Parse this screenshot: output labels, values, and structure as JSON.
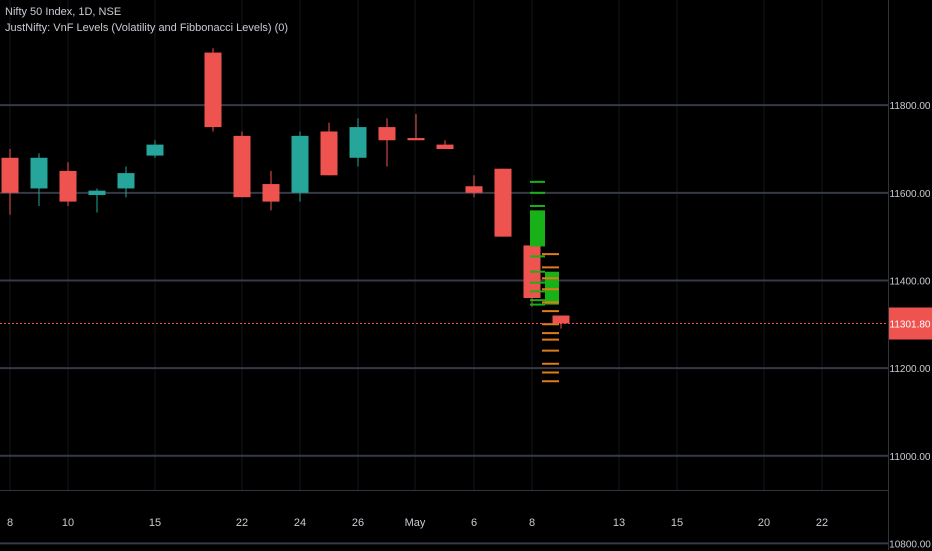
{
  "window": {
    "symbol_label": "Nifty 50 Index, 1D, NSE",
    "indicator_label": "JustNifty: VnF Levels (Volatility and Fibbonacci Levels) (0)"
  },
  "colors": {
    "background": "#000000",
    "up": "#26a69a",
    "down": "#ef5350",
    "grid": "#363a45",
    "level_green": "#18b218",
    "level_orange": "#e07b1a",
    "last_price": "#ef5350"
  },
  "chart_data": {
    "type": "candlestick",
    "title": "",
    "y_ticks": [
      11800,
      11600,
      11400,
      11200,
      11000,
      10800
    ],
    "y_tick_labels": [
      "11800.00",
      "11600.00",
      "11400.00",
      "11200.00",
      "11000.00",
      "10800.00"
    ],
    "ylim": [
      10785,
      12040
    ],
    "x_tick_labels": [
      "8",
      "10",
      "15",
      "22",
      "24",
      "26",
      "May",
      "6",
      "8",
      "13",
      "15",
      "20",
      "22"
    ],
    "grid": true,
    "last_price": 11301.8,
    "last_price_label": "11301.80",
    "candles": [
      {
        "o": 11680,
        "h": 11700,
        "l": 11550,
        "c": 11600
      },
      {
        "o": 11610,
        "h": 11690,
        "l": 11570,
        "c": 11680
      },
      {
        "o": 11650,
        "h": 11670,
        "l": 11570,
        "c": 11580
      },
      {
        "o": 11595,
        "h": 11610,
        "l": 11555,
        "c": 11605
      },
      {
        "o": 11610,
        "h": 11660,
        "l": 11590,
        "c": 11645
      },
      {
        "o": 11685,
        "h": 11720,
        "l": 11680,
        "c": 11710
      },
      {
        "o": 11920,
        "h": 11930,
        "l": 11740,
        "c": 11750
      },
      {
        "o": 11730,
        "h": 11740,
        "l": 11590,
        "c": 11590
      },
      {
        "o": 11620,
        "h": 11650,
        "l": 11560,
        "c": 11580
      },
      {
        "o": 11600,
        "h": 11740,
        "l": 11580,
        "c": 11730
      },
      {
        "o": 11740,
        "h": 11760,
        "l": 11640,
        "c": 11640
      },
      {
        "o": 11680,
        "h": 11770,
        "l": 11660,
        "c": 11750
      },
      {
        "o": 11750,
        "h": 11770,
        "l": 11660,
        "c": 11720
      },
      {
        "o": 11725,
        "h": 11780,
        "l": 11720,
        "c": 11720
      },
      {
        "o": 11710,
        "h": 11720,
        "l": 11700,
        "c": 11700
      },
      {
        "o": 11615,
        "h": 11640,
        "l": 11590,
        "c": 11600
      },
      {
        "o": 11655,
        "h": 11655,
        "l": 11500,
        "c": 11500
      },
      {
        "o": 11480,
        "h": 11480,
        "l": 11340,
        "c": 11360
      },
      {
        "o": 11320,
        "h": 11320,
        "l": 11290,
        "c": 11302
      }
    ],
    "level_lines": {
      "green": [
        11625,
        11600,
        11570,
        11550,
        11525,
        11500,
        11480,
        11455,
        11420,
        11395,
        11375,
        11355,
        11345
      ],
      "orange": [
        11460,
        11430,
        11405,
        11380,
        11350,
        11330,
        11300,
        11280,
        11265,
        11240,
        11210,
        11190,
        11170
      ]
    }
  }
}
